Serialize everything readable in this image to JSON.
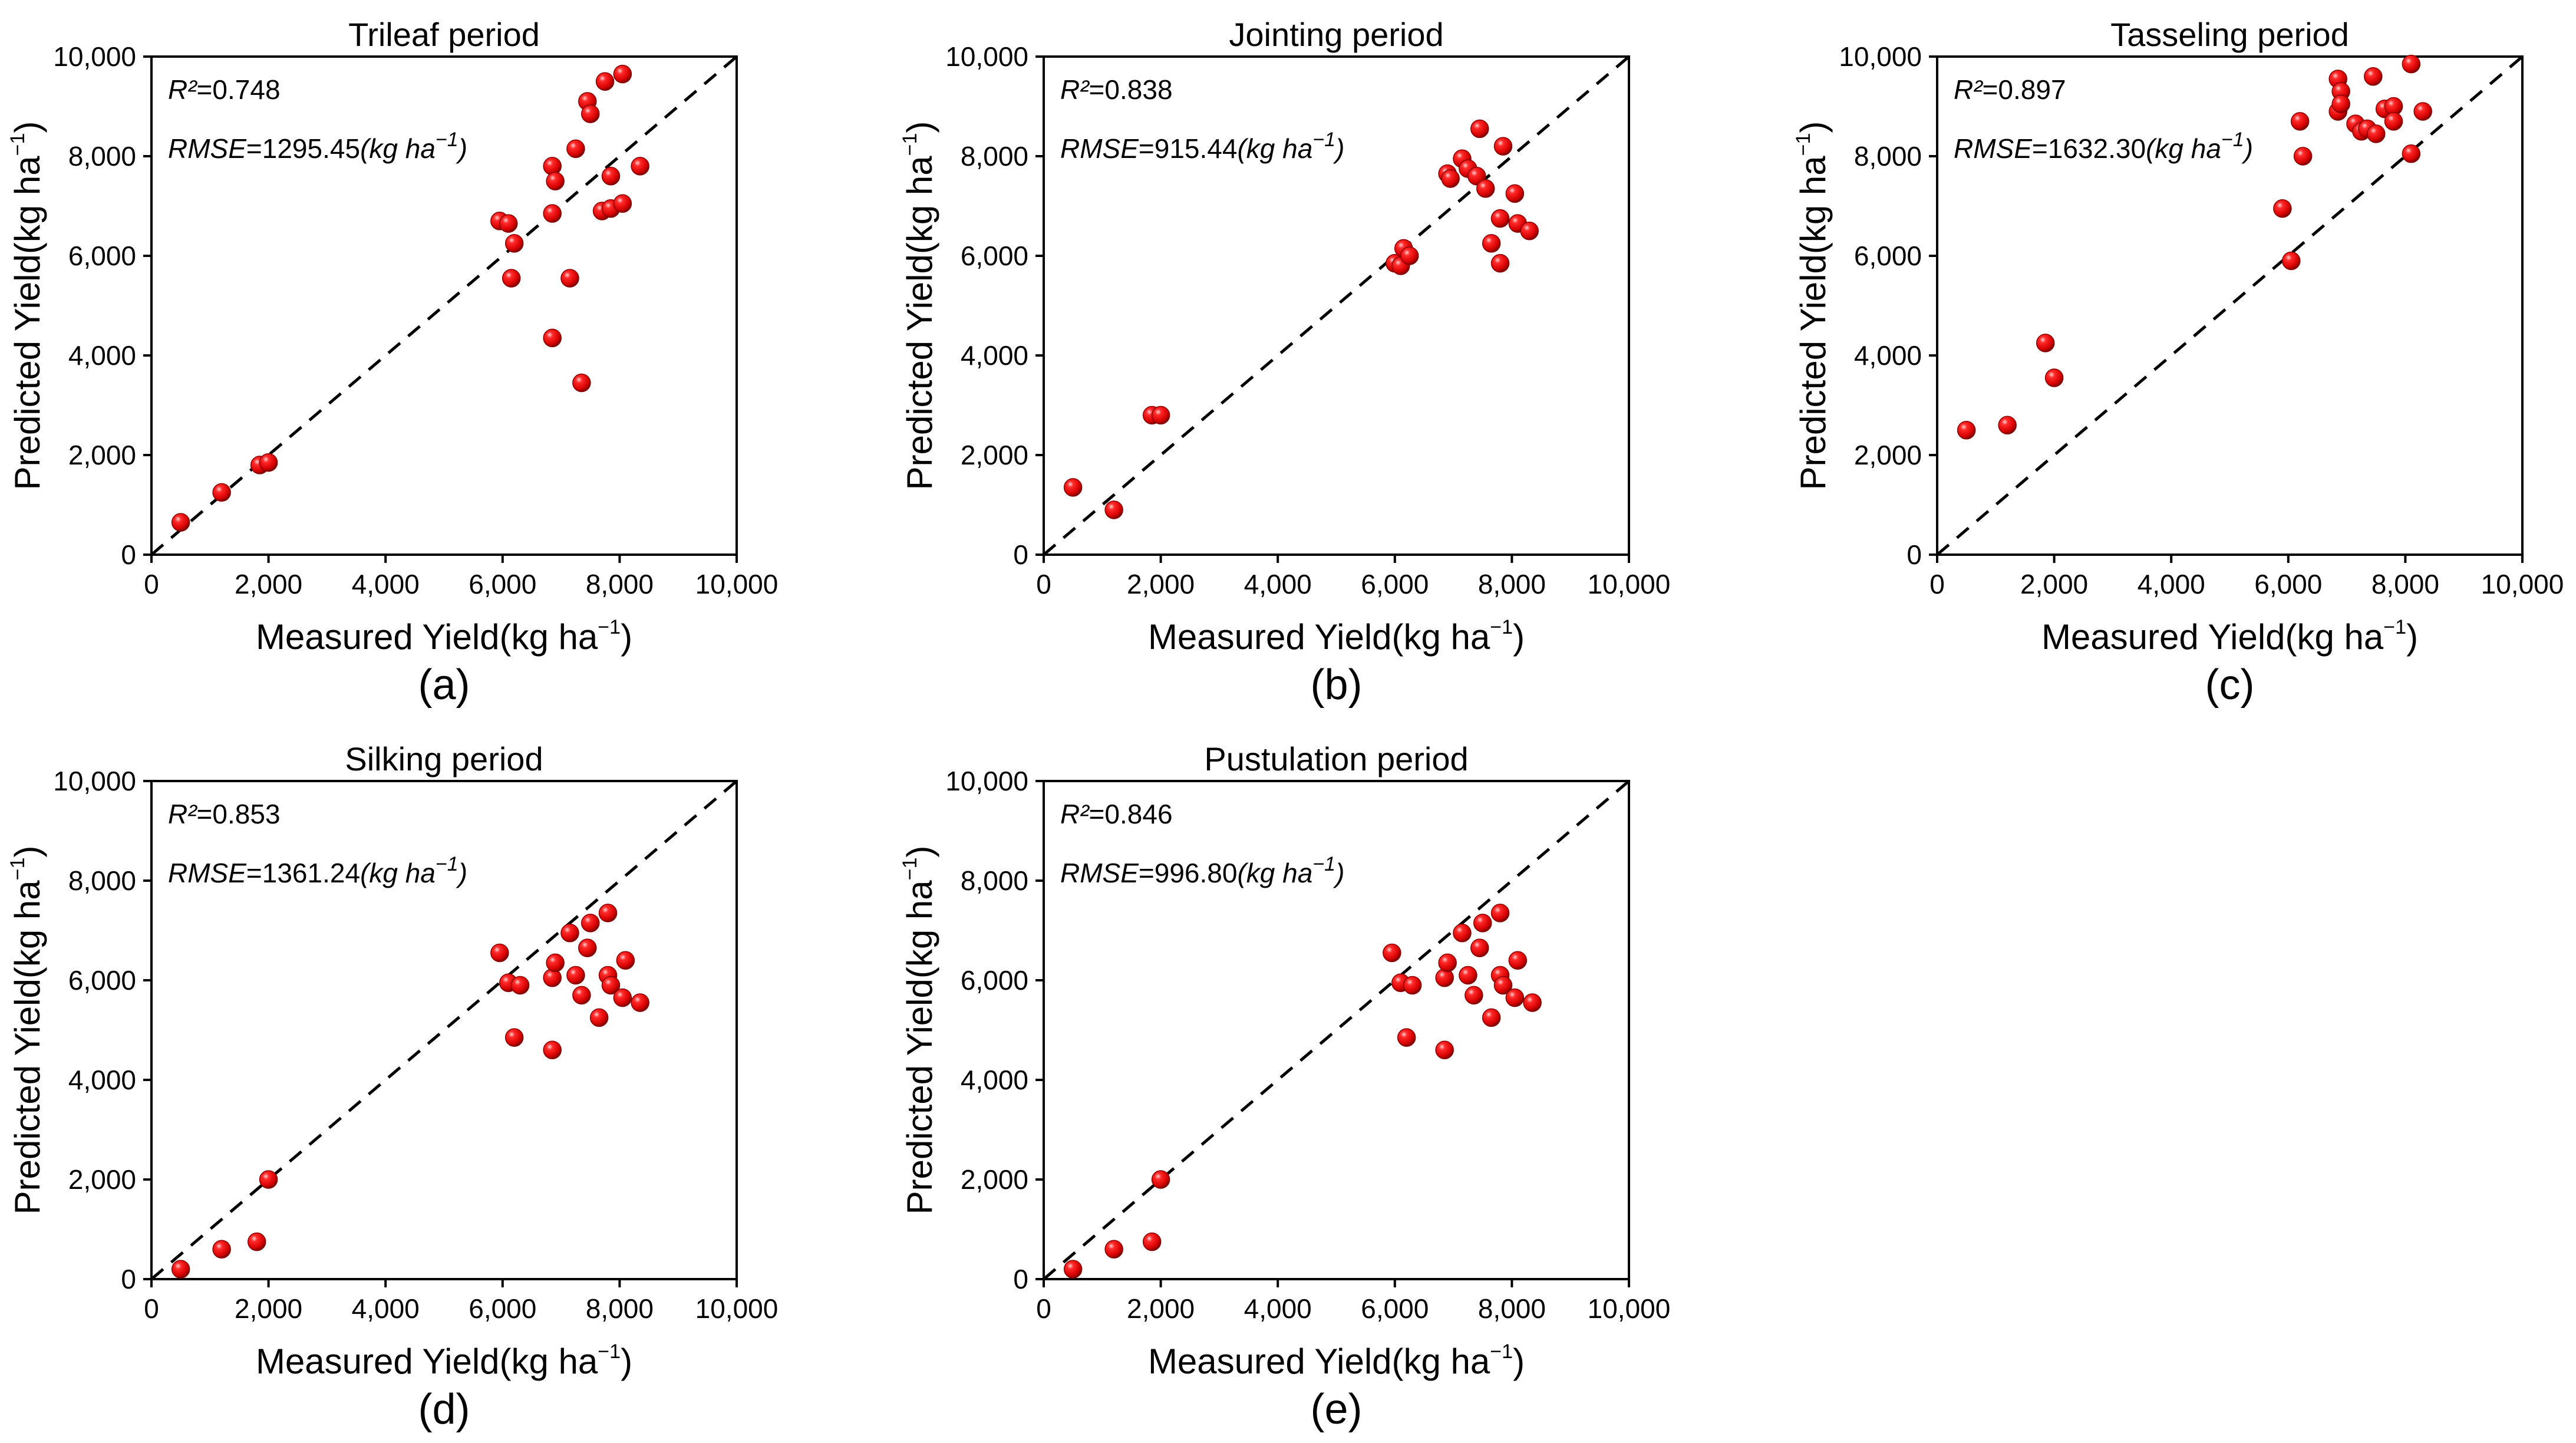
{
  "colors": {
    "marker": "#e3000f",
    "marker_edge": "#8a0000",
    "diagonal": "#000000"
  },
  "chart_data": [
    {
      "type": "scatter",
      "panel_label": "(a)",
      "title": "Trileaf period",
      "xlabel": {
        "main": "Measured Yield(kg ha",
        "sup": "−1",
        "close": ")"
      },
      "ylabel": {
        "main": "Predicted Yield(kg ha",
        "sup": "−1",
        "close": ")"
      },
      "xlim": [
        0,
        10000
      ],
      "ylim": [
        0,
        10000
      ],
      "xticks": [
        "0",
        "2,000",
        "4,000",
        "6,000",
        "8,000",
        "10,000"
      ],
      "yticks": [
        "0",
        "2,000",
        "4,000",
        "6,000",
        "8,000",
        "10,000"
      ],
      "annotations": [
        {
          "var": "R²",
          "text": "=0.748"
        },
        {
          "var": "RMSE",
          "text": "=1295.45",
          "unit": "(kg ha",
          "sup": "−1",
          "close": ")"
        }
      ],
      "reference_line": "1:1",
      "points": [
        [
          500,
          650
        ],
        [
          1200,
          1250
        ],
        [
          1850,
          1800
        ],
        [
          2000,
          1850
        ],
        [
          5950,
          6700
        ],
        [
          6100,
          6650
        ],
        [
          6200,
          6250
        ],
        [
          6150,
          5550
        ],
        [
          6850,
          7800
        ],
        [
          6900,
          7500
        ],
        [
          6850,
          6850
        ],
        [
          6850,
          4350
        ],
        [
          7150,
          5550
        ],
        [
          7250,
          8150
        ],
        [
          7350,
          3450
        ],
        [
          7450,
          9100
        ],
        [
          7500,
          8850
        ],
        [
          7750,
          9500
        ],
        [
          8050,
          9650
        ],
        [
          7700,
          6900
        ],
        [
          7850,
          7600
        ],
        [
          7850,
          6950
        ],
        [
          8050,
          7050
        ],
        [
          8350,
          7800
        ]
      ]
    },
    {
      "type": "scatter",
      "panel_label": "(b)",
      "title": "Jointing period",
      "xlabel": {
        "main": "Measured Yield(kg ha",
        "sup": "−1",
        "close": ")"
      },
      "ylabel": {
        "main": "Predicted Yield(kg ha",
        "sup": "−1",
        "close": ")"
      },
      "xlim": [
        0,
        10000
      ],
      "ylim": [
        0,
        10000
      ],
      "xticks": [
        "0",
        "2,000",
        "4,000",
        "6,000",
        "8,000",
        "10,000"
      ],
      "yticks": [
        "0",
        "2,000",
        "4,000",
        "6,000",
        "8,000",
        "10,000"
      ],
      "annotations": [
        {
          "var": "R²",
          "text": "=0.838"
        },
        {
          "var": "RMSE",
          "text": "=915.44",
          "unit": "(kg ha",
          "sup": "−1",
          "close": ")"
        }
      ],
      "reference_line": "1:1",
      "points": [
        [
          500,
          1350
        ],
        [
          1200,
          900
        ],
        [
          1850,
          2800
        ],
        [
          2000,
          2800
        ],
        [
          6000,
          5850
        ],
        [
          6100,
          5800
        ],
        [
          6150,
          6150
        ],
        [
          6250,
          6000
        ],
        [
          6900,
          7650
        ],
        [
          6950,
          7550
        ],
        [
          7150,
          7950
        ],
        [
          7250,
          7750
        ],
        [
          7400,
          7600
        ],
        [
          7450,
          8550
        ],
        [
          7550,
          7350
        ],
        [
          7650,
          6250
        ],
        [
          7800,
          5850
        ],
        [
          7850,
          8200
        ],
        [
          7800,
          6750
        ],
        [
          8050,
          7250
        ],
        [
          8100,
          6650
        ],
        [
          8300,
          6500
        ]
      ]
    },
    {
      "type": "scatter",
      "panel_label": "(c)",
      "title": "Tasseling period",
      "xlabel": {
        "main": "Measured Yield(kg ha",
        "sup": "−1",
        "close": ")"
      },
      "ylabel": {
        "main": "Predicted Yield(kg ha",
        "sup": "−1",
        "close": ")"
      },
      "xlim": [
        0,
        10000
      ],
      "ylim": [
        0,
        10000
      ],
      "xticks": [
        "0",
        "2,000",
        "4,000",
        "6,000",
        "8,000",
        "10,000"
      ],
      "yticks": [
        "0",
        "2,000",
        "4,000",
        "6,000",
        "8,000",
        "10,000"
      ],
      "annotations": [
        {
          "var": "R²",
          "text": "=0.897"
        },
        {
          "var": "RMSE",
          "text": "=1632.30",
          "unit": "(kg ha",
          "sup": "−1",
          "close": ")"
        }
      ],
      "reference_line": "1:1",
      "points": [
        [
          500,
          2500
        ],
        [
          1200,
          2600
        ],
        [
          1850,
          4250
        ],
        [
          2000,
          3550
        ],
        [
          5900,
          6950
        ],
        [
          6050,
          5900
        ],
        [
          6200,
          8700
        ],
        [
          6250,
          8000
        ],
        [
          6850,
          9550
        ],
        [
          6900,
          9300
        ],
        [
          6850,
          8900
        ],
        [
          6900,
          9050
        ],
        [
          7150,
          8650
        ],
        [
          7250,
          8500
        ],
        [
          7350,
          8550
        ],
        [
          7450,
          9600
        ],
        [
          7500,
          8450
        ],
        [
          7650,
          8950
        ],
        [
          7800,
          9000
        ],
        [
          7800,
          8700
        ],
        [
          8100,
          8050
        ],
        [
          8100,
          9850
        ],
        [
          8300,
          8900
        ]
      ]
    },
    {
      "type": "scatter",
      "panel_label": "(d)",
      "title": "Silking period",
      "xlabel": {
        "main": "Measured Yield(kg ha",
        "sup": "−1",
        "close": ")"
      },
      "ylabel": {
        "main": "Predicted Yield(kg ha",
        "sup": "−1",
        "close": ")"
      },
      "xlim": [
        0,
        10000
      ],
      "ylim": [
        0,
        10000
      ],
      "xticks": [
        "0",
        "2,000",
        "4,000",
        "6,000",
        "8,000",
        "10,000"
      ],
      "yticks": [
        "0",
        "2,000",
        "4,000",
        "6,000",
        "8,000",
        "10,000"
      ],
      "annotations": [
        {
          "var": "R²",
          "text": "=0.853"
        },
        {
          "var": "RMSE",
          "text": "=1361.24",
          "unit": "(kg ha",
          "sup": "−1",
          "close": ")"
        }
      ],
      "reference_line": "1:1",
      "points": [
        [
          500,
          200
        ],
        [
          1200,
          600
        ],
        [
          1800,
          750
        ],
        [
          2000,
          2000
        ],
        [
          5950,
          6550
        ],
        [
          6100,
          5950
        ],
        [
          6200,
          4850
        ],
        [
          6300,
          5900
        ],
        [
          6850,
          6050
        ],
        [
          6900,
          6350
        ],
        [
          6850,
          4600
        ],
        [
          7150,
          6950
        ],
        [
          7250,
          6100
        ],
        [
          7350,
          5700
        ],
        [
          7450,
          6650
        ],
        [
          7500,
          7150
        ],
        [
          7650,
          5250
        ],
        [
          7800,
          7350
        ],
        [
          7800,
          6100
        ],
        [
          7850,
          5900
        ],
        [
          8050,
          5650
        ],
        [
          8100,
          6400
        ],
        [
          8350,
          5550
        ]
      ]
    },
    {
      "type": "scatter",
      "panel_label": "(e)",
      "title": "Pustulation period",
      "xlabel": {
        "main": "Measured Yield(kg ha",
        "sup": "−1",
        "close": ")"
      },
      "ylabel": {
        "main": "Predicted Yield(kg ha",
        "sup": "−1",
        "close": ")"
      },
      "xlim": [
        0,
        10000
      ],
      "ylim": [
        0,
        10000
      ],
      "xticks": [
        "0",
        "2,000",
        "4,000",
        "6,000",
        "8,000",
        "10,000"
      ],
      "yticks": [
        "0",
        "2,000",
        "4,000",
        "6,000",
        "8,000",
        "10,000"
      ],
      "annotations": [
        {
          "var": "R²",
          "text": "=0.846"
        },
        {
          "var": "RMSE",
          "text": "=996.80",
          "unit": "(kg ha",
          "sup": "−1",
          "close": ")"
        }
      ],
      "reference_line": "1:1",
      "points": [
        [
          500,
          200
        ],
        [
          1200,
          600
        ],
        [
          1850,
          750
        ],
        [
          2000,
          2000
        ],
        [
          5950,
          6550
        ],
        [
          6100,
          5950
        ],
        [
          6200,
          4850
        ],
        [
          6300,
          5900
        ],
        [
          6850,
          6050
        ],
        [
          6900,
          6350
        ],
        [
          6850,
          4600
        ],
        [
          7150,
          6950
        ],
        [
          7250,
          6100
        ],
        [
          7350,
          5700
        ],
        [
          7450,
          6650
        ],
        [
          7500,
          7150
        ],
        [
          7650,
          5250
        ],
        [
          7800,
          7350
        ],
        [
          7800,
          6100
        ],
        [
          7850,
          5900
        ],
        [
          8050,
          5650
        ],
        [
          8100,
          6400
        ],
        [
          8350,
          5550
        ]
      ]
    }
  ]
}
